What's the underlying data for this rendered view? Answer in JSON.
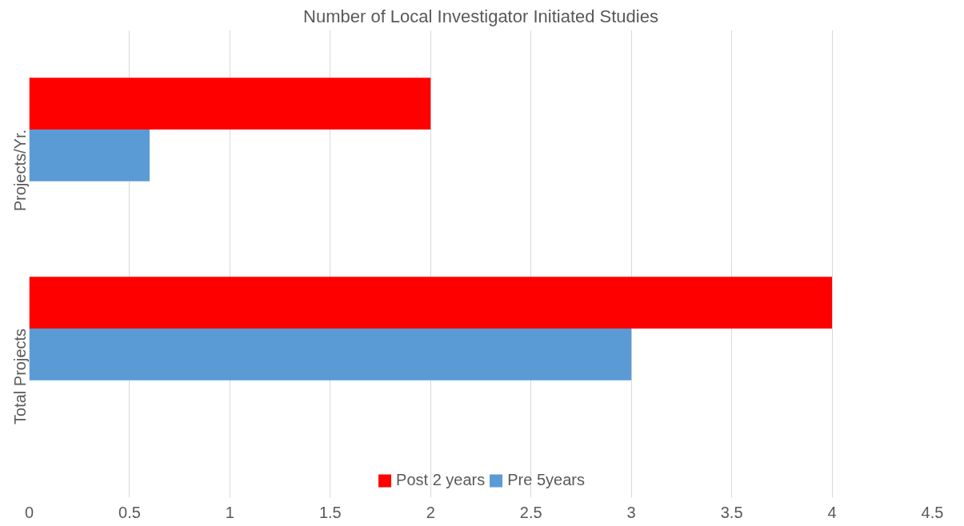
{
  "chart_data": {
    "type": "bar",
    "orientation": "horizontal",
    "title": "Number of Local Investigator Initiated Studies",
    "categories": [
      "Projects/Yr.",
      "Total Projects"
    ],
    "series": [
      {
        "name": "Post 2 years",
        "color": "#ff0000",
        "values": [
          2,
          4
        ]
      },
      {
        "name": "Pre 5years",
        "color": "#5b9bd5",
        "values": [
          0.6,
          3
        ]
      }
    ],
    "xlim": [
      0,
      4.5
    ],
    "xticks": [
      0,
      0.5,
      1,
      1.5,
      2,
      2.5,
      3,
      3.5,
      4,
      4.5
    ],
    "grid": "x",
    "legend": "bottom"
  }
}
